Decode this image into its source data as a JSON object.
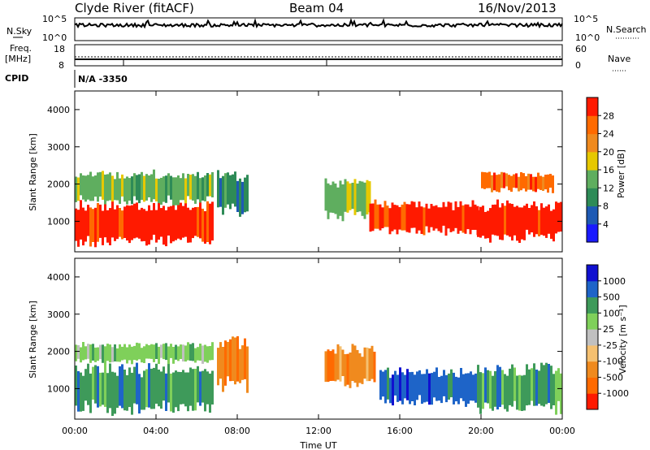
{
  "header": {
    "station": "Clyde River (fitACF)",
    "beam": "Beam 04",
    "date": "16/Nov/2013"
  },
  "top_panels": {
    "nsky_label": "N.Sky",
    "nsky_ticks": [
      "10^5",
      "10^0"
    ],
    "nsearch_label": "N.Search",
    "nsearch_ticks": [
      "10^5",
      "10^0"
    ],
    "freq_label_line1": "Freq.",
    "freq_label_line2": "[MHz]",
    "freq_ticks": [
      "18",
      "8"
    ],
    "nave_label": "Nave",
    "nave_ticks": [
      "60",
      "0"
    ],
    "cpid_label": "CPID",
    "cpid_value": "N/A  -3350"
  },
  "x_axis": {
    "label": "Time UT",
    "ticks": [
      "00:00",
      "04:00",
      "08:00",
      "12:00",
      "16:00",
      "20:00",
      "00:00"
    ]
  },
  "power_panel": {
    "ylabel": "Slant Range [km]",
    "yticks": [
      "1000",
      "2000",
      "3000",
      "4000"
    ],
    "colorbar_label": "Power [dB]",
    "colorbar_ticks": [
      "4",
      "8",
      "12",
      "16",
      "20",
      "24",
      "28"
    ],
    "colors": [
      "#1a1aff",
      "#1e5ab4",
      "#2e8b57",
      "#5fae5f",
      "#e6c800",
      "#f08a1e",
      "#ff6a00",
      "#ff1a00"
    ]
  },
  "velocity_panel": {
    "ylabel": "Slant Range [km]",
    "yticks": [
      "1000",
      "2000",
      "3000",
      "4000"
    ],
    "colorbar_label": "Velocity [m s⁻¹]",
    "colorbar_ticks": [
      "-1000",
      "-500",
      "-100",
      "-25",
      "25",
      "100",
      "500",
      "1000"
    ],
    "colors": [
      "#ff1a00",
      "#ff6a00",
      "#f08a1e",
      "#f5c070",
      "#c0c0c0",
      "#7fd05a",
      "#3e9a5a",
      "#1e64c8",
      "#1010d0"
    ]
  },
  "chart_data": [
    {
      "type": "heatmap",
      "title": "Power",
      "xlabel": "Time UT",
      "ylabel": "Slant Range [km]",
      "xlim": [
        0,
        24
      ],
      "ylim": [
        180,
        4500
      ],
      "colorbar": {
        "label": "Power [dB]",
        "range": [
          0,
          32
        ],
        "ticks": [
          4,
          8,
          12,
          16,
          20,
          24,
          28
        ]
      },
      "regions": [
        {
          "t": [
            0,
            6.8
          ],
          "r": [
            400,
            1500
          ],
          "value": 28
        },
        {
          "t": [
            0,
            6.8
          ],
          "r": [
            1500,
            2300
          ],
          "value": 14
        },
        {
          "t": [
            7.0,
            8.5
          ],
          "r": [
            1200,
            2300
          ],
          "value": 10
        },
        {
          "t": [
            12.3,
            14.5
          ],
          "r": [
            1100,
            2100
          ],
          "value": 14
        },
        {
          "t": [
            14.5,
            19.8
          ],
          "r": [
            700,
            1500
          ],
          "value": 28
        },
        {
          "t": [
            19.8,
            24
          ],
          "r": [
            500,
            1500
          ],
          "value": 28
        },
        {
          "t": [
            20.0,
            23.5
          ],
          "r": [
            1800,
            2300
          ],
          "value": 26
        }
      ]
    },
    {
      "type": "heatmap",
      "title": "Velocity",
      "xlabel": "Time UT",
      "ylabel": "Slant Range [km]",
      "xlim": [
        0,
        24
      ],
      "ylim": [
        180,
        4500
      ],
      "colorbar": {
        "label": "Velocity [m s⁻¹]",
        "ticks": [
          -1000,
          -500,
          -100,
          -25,
          25,
          100,
          500,
          1000
        ]
      },
      "regions": [
        {
          "t": [
            0,
            6.8
          ],
          "r": [
            400,
            1600
          ],
          "value": 300
        },
        {
          "t": [
            0,
            6.8
          ],
          "r": [
            1700,
            2200
          ],
          "value": 60
        },
        {
          "t": [
            7.0,
            8.5
          ],
          "r": [
            1000,
            2300
          ],
          "value": -200
        },
        {
          "t": [
            12.3,
            14.8
          ],
          "r": [
            1100,
            2100
          ],
          "value": -300
        },
        {
          "t": [
            15.0,
            19.8
          ],
          "r": [
            600,
            1500
          ],
          "value": 900
        },
        {
          "t": [
            19.8,
            24
          ],
          "r": [
            400,
            1600
          ],
          "value": 400
        }
      ]
    }
  ]
}
